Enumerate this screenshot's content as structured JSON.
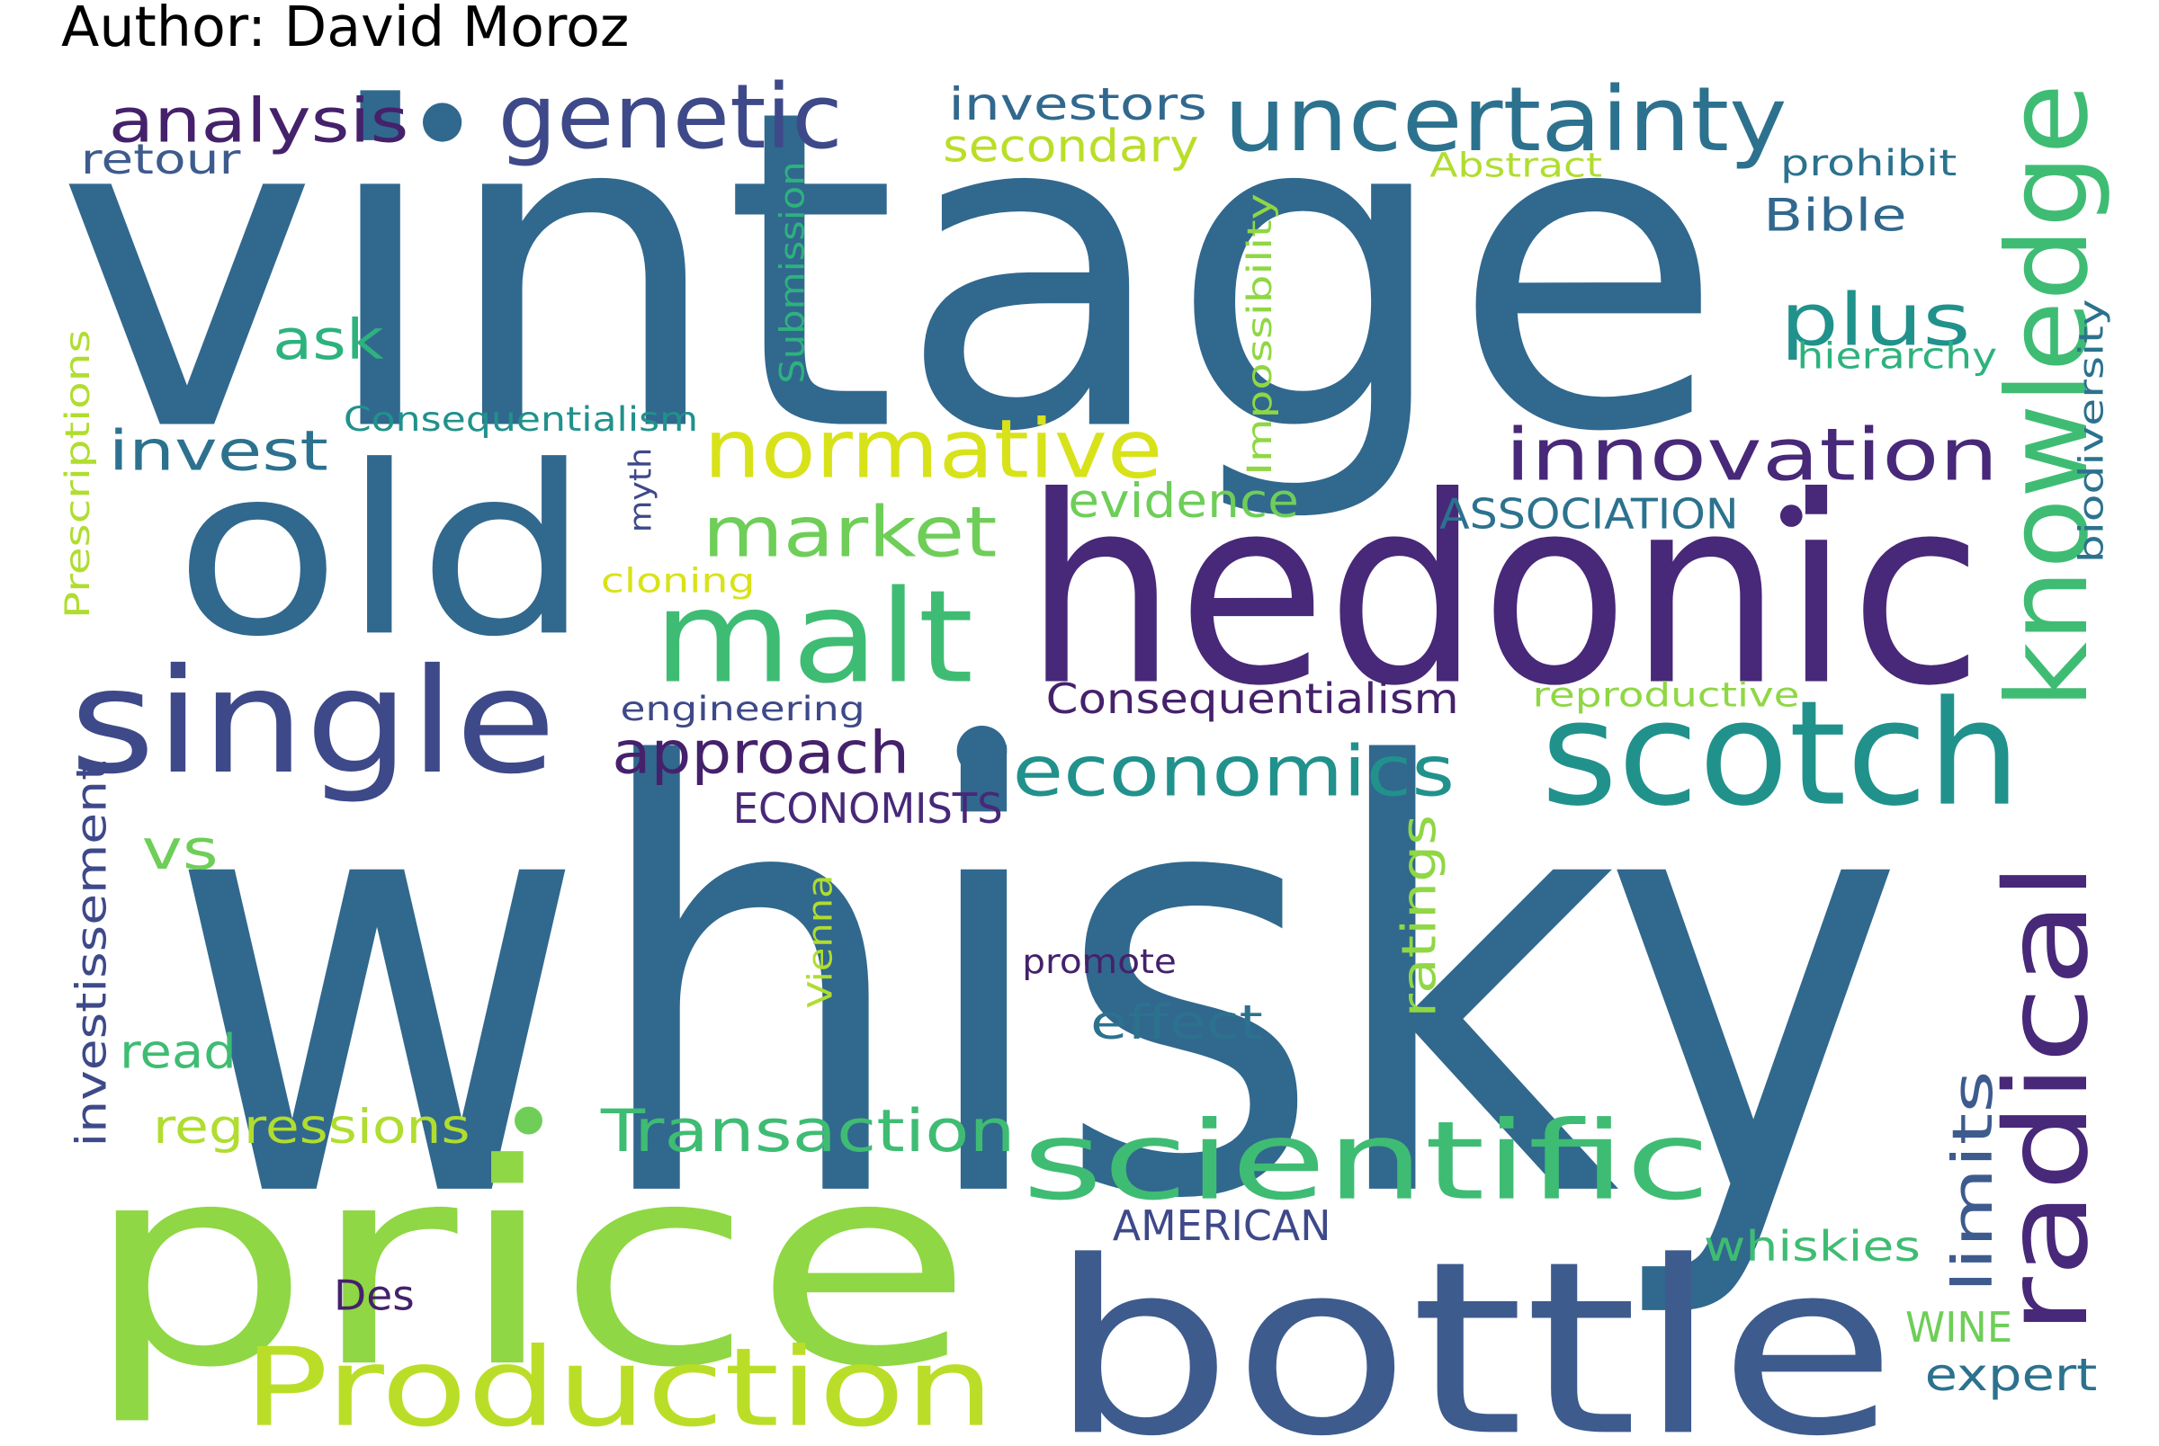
{
  "author": "Author: David Moroz",
  "colors": {
    "dark_purple": "#45216b",
    "purple": "#482878",
    "indigo": "#3e4989",
    "blue": "#31688e",
    "steel_blue": "#2c728e",
    "teal": "#21918c",
    "sea_green": "#2db27d",
    "green": "#3fbc73",
    "light_green": "#6ece58",
    "lime": "#8fd744",
    "yellow_green": "#bade28",
    "yellow": "#d8e219"
  },
  "words": [
    "vintage",
    "whisky",
    "price",
    "hedonic",
    "old",
    "bottle",
    "single",
    "malt",
    "scotch",
    "knowledge",
    "radical",
    "scientific",
    "Production",
    "uncertainty",
    "genetic",
    "analysis",
    "normative",
    "innovation",
    "market",
    "economics",
    "approach",
    "plus",
    "investors",
    "secondary",
    "retour",
    "ask",
    "invest",
    "Consequentialism",
    "evidence",
    "ASSOCIATION",
    "Bible",
    "prohibit",
    "Abstract",
    "Submission",
    "Impossibility",
    "hierarchy",
    "biodiversity",
    "Prescriptions",
    "myth",
    "cloning",
    "engineering",
    "Consequentialism",
    "reproductive",
    "ECONOMISTS",
    "vs",
    "investissement",
    "Vienna",
    "ratings",
    "promote",
    "effect",
    "read",
    "regressions",
    "Transaction",
    "limits",
    "AMERICAN",
    "whiskies",
    "Des",
    "WINE",
    "expert"
  ],
  "dots": [
    "dot",
    "dot",
    "dot",
    "dot",
    "dot"
  ]
}
